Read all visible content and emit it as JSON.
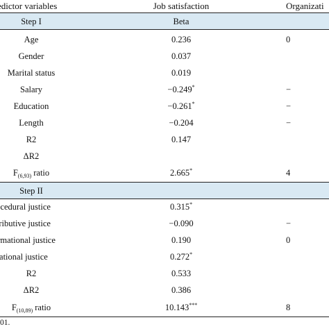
{
  "header": {
    "col1": "edictor variables",
    "col2": "Job satisfaction",
    "col3": "Organizati"
  },
  "step1": {
    "label": "Step I",
    "beta_label": "Beta",
    "rows": [
      {
        "name": "Age",
        "job": "0.236",
        "org": "0",
        "sup": ""
      },
      {
        "name": "Gender",
        "job": "0.037",
        "org": "",
        "sup": ""
      },
      {
        "name": "Marital status",
        "job": "0.019",
        "org": "",
        "sup": ""
      },
      {
        "name": "Salary",
        "job": "−0.249",
        "org": "−",
        "sup": "*"
      },
      {
        "name": "Education",
        "job": "−0.261",
        "org": "−",
        "sup": "*"
      },
      {
        "name": "Length",
        "job": "−0.204",
        "org": "−",
        "sup": ""
      },
      {
        "name": "R2",
        "job": "0.147",
        "org": "",
        "sup": ""
      },
      {
        "name": "ΔR2",
        "job": "",
        "org": "",
        "sup": ""
      }
    ],
    "f_ratio": {
      "prefix": "F",
      "sub": "(6,93)",
      "suffix": " ratio",
      "job": "2.665",
      "sup": "*",
      "org": "4"
    }
  },
  "step2": {
    "label": "Step II",
    "rows": [
      {
        "name": "rocedural justice",
        "job": "0.315",
        "org": "",
        "sup": "*"
      },
      {
        "name": "stributive justice",
        "job": "−0.090",
        "org": "−",
        "sup": ""
      },
      {
        "name": "ormational justice",
        "job": "0.190",
        "org": "0",
        "sup": ""
      },
      {
        "name": "elational justice",
        "job": "0.272",
        "org": "",
        "sup": "*"
      },
      {
        "name": "R2",
        "job": "0.533",
        "org": "",
        "sup": ""
      },
      {
        "name": "ΔR2",
        "job": "0.386",
        "org": "",
        "sup": ""
      }
    ],
    "f_ratio": {
      "prefix": "F",
      "sub": "(10,89)",
      "suffix": " ratio",
      "job": "10.143",
      "sup": "***",
      "org": "8"
    }
  },
  "footnote": "01."
}
